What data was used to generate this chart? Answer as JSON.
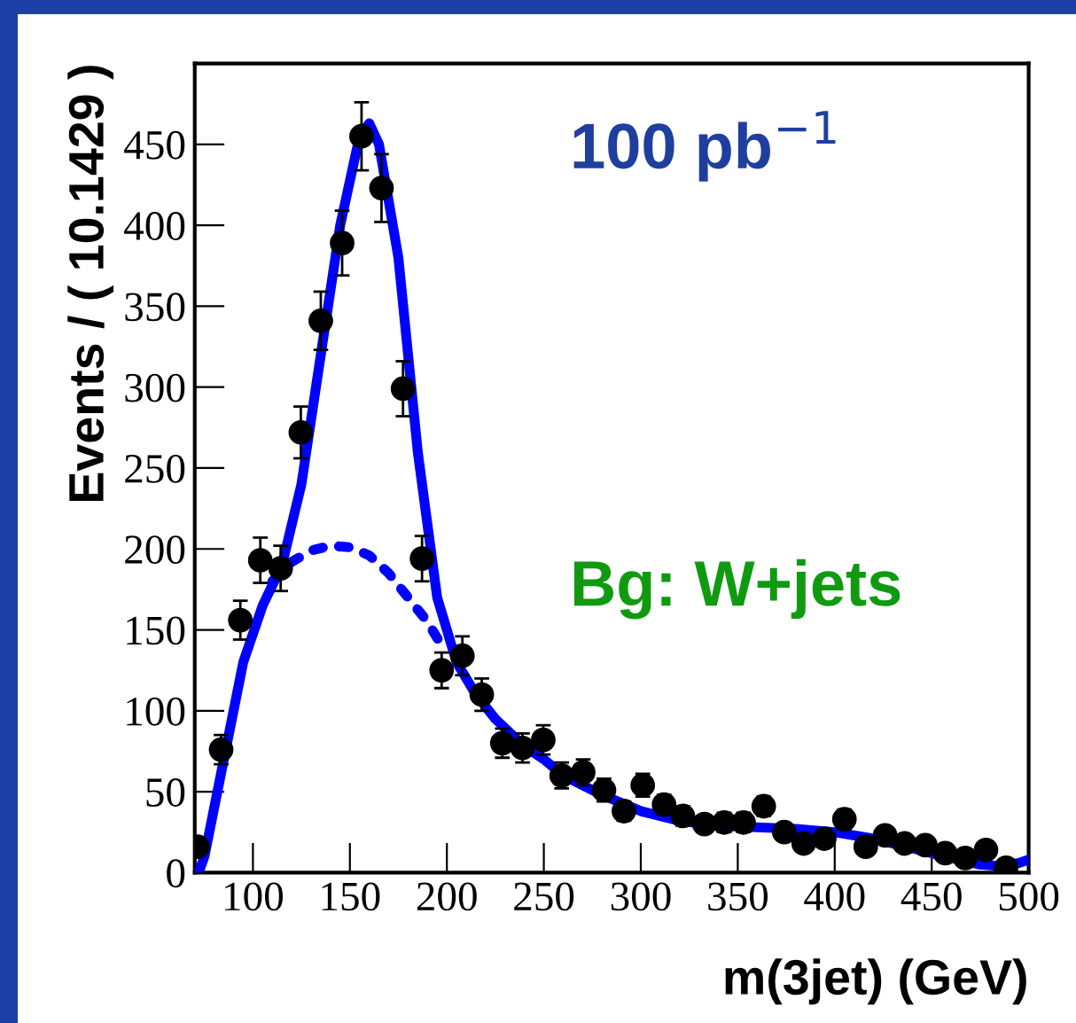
{
  "chart_data": {
    "type": "scatter",
    "xlabel": "m(3jet) (GeV)",
    "ylabel": "Events / ( 10.1429 )",
    "annotations": [
      "100 pb$^{−1}$",
      "Bg: W+jets"
    ],
    "xlim": [
      70,
      500
    ],
    "xticks": [
      100,
      150,
      200,
      250,
      300,
      350,
      400,
      450,
      500
    ],
    "ylim": [
      0,
      500
    ],
    "yticks": [
      0,
      50,
      100,
      150,
      200,
      250,
      300,
      350,
      400,
      450
    ],
    "grid": false,
    "legend": false,
    "series": [
      {
        "color": "#000000",
        "marker": "circle",
        "x": [
          71.4,
          83.6,
          93.5,
          103.8,
          114.3,
          124.7,
          135,
          146,
          156,
          166.3,
          177.4,
          187.2,
          197.3,
          208,
          218,
          228.6,
          239,
          249.7,
          259.2,
          270.3,
          281,
          291.3,
          301,
          312,
          321.7,
          332.8,
          343,
          353,
          363.4,
          374,
          384,
          394.6,
          405,
          416,
          426,
          436,
          446.7,
          457,
          467.3,
          478,
          488.4
        ],
        "values": [
          16,
          76,
          156,
          193,
          188,
          272,
          341,
          389,
          455,
          423,
          299,
          194,
          125,
          134,
          110,
          80,
          77,
          82,
          60,
          62,
          51,
          38,
          54,
          42,
          35,
          30,
          31,
          31,
          41,
          25,
          18,
          21,
          33,
          16,
          23,
          18,
          17,
          12,
          9,
          14,
          3
        ],
        "errors": [
          4,
          9,
          12,
          14,
          14,
          16,
          18,
          20,
          21,
          21,
          17,
          14,
          11,
          12,
          10,
          9,
          9,
          9,
          8,
          8,
          7,
          6,
          7,
          6,
          6,
          5,
          6,
          6,
          6,
          5,
          4,
          5,
          6,
          4,
          5,
          4,
          4,
          3,
          3,
          4,
          null
        ]
      },
      {
        "type": "line",
        "color": "#0000ff",
        "line_style": "solid",
        "x": [
          72,
          75,
          85,
          95,
          105,
          115,
          125,
          135,
          145,
          155,
          160,
          165,
          175,
          185,
          195,
          205,
          215,
          225,
          240,
          250,
          260,
          280,
          300,
          320,
          340,
          360,
          380,
          400,
          420,
          440,
          460,
          475,
          485,
          495,
          500
        ],
        "values": [
          0,
          10,
          70,
          130,
          165,
          190,
          240,
          320,
          400,
          455,
          463,
          450,
          380,
          260,
          170,
          130,
          110,
          95,
          78,
          70,
          60,
          48,
          38,
          32,
          29,
          28,
          27,
          25,
          21,
          15,
          9,
          5,
          4,
          6,
          8
        ]
      },
      {
        "type": "line",
        "color": "#0000ff",
        "line_style": "dotted",
        "x": [
          110,
          120,
          130,
          140,
          150,
          160,
          170,
          180,
          190,
          196
        ],
        "values": [
          180,
          192,
          199,
          202,
          201,
          196,
          185,
          170,
          155,
          143
        ]
      }
    ]
  }
}
